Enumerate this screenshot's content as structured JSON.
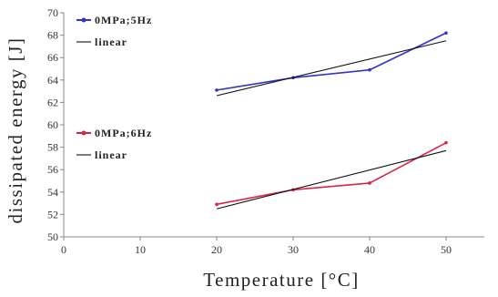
{
  "chart_data": {
    "type": "line",
    "xlabel": "Temperature [°C]",
    "ylabel": "dissipated energy [J]",
    "xlim": [
      0,
      55
    ],
    "ylim": [
      50,
      70
    ],
    "xticks": [
      0,
      10,
      20,
      30,
      40,
      50
    ],
    "yticks": [
      50,
      52,
      54,
      56,
      58,
      60,
      62,
      64,
      66,
      68,
      70
    ],
    "grid": false,
    "series": [
      {
        "name": "0MPa;5Hz",
        "color": "#3333cc",
        "x": [
          20,
          30,
          40,
          50
        ],
        "y": [
          63.1,
          64.2,
          64.9,
          68.2
        ]
      },
      {
        "name": "linear",
        "color": "#111111",
        "x": [
          20,
          50
        ],
        "y": [
          62.6,
          67.5
        ]
      },
      {
        "name": "0MPa;6Hz",
        "color": "#dd2244",
        "x": [
          20,
          30,
          40,
          50
        ],
        "y": [
          52.9,
          54.2,
          54.8,
          58.4
        ]
      },
      {
        "name": "linear",
        "color": "#111111",
        "x": [
          20,
          50
        ],
        "y": [
          52.5,
          57.7
        ]
      }
    ],
    "legends": [
      {
        "position": "upper-left",
        "entries": [
          0,
          1
        ]
      },
      {
        "position": "middle-left",
        "entries": [
          2,
          3
        ]
      }
    ]
  }
}
